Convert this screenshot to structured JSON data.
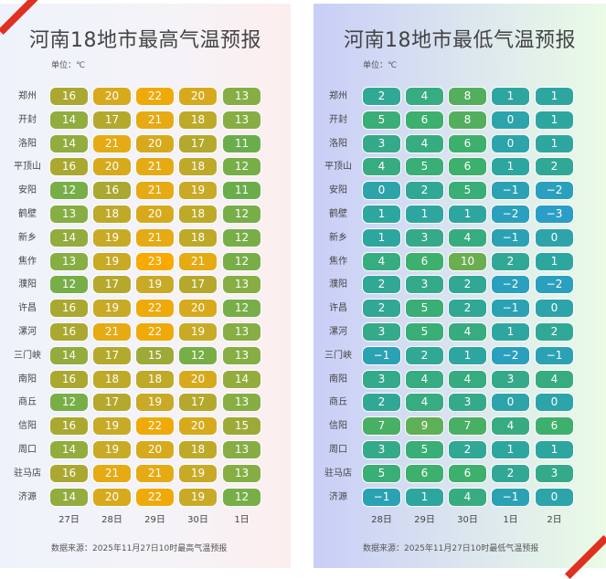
{
  "high": {
    "title": "河南18地市最高气温预报",
    "unit": "单位：℃",
    "dates": [
      "27日",
      "28日",
      "29日",
      "30日",
      "1日"
    ],
    "rows": [
      {
        "city": "郑州",
        "values": [
          16,
          20,
          22,
          20,
          13
        ]
      },
      {
        "city": "开封",
        "values": [
          14,
          17,
          21,
          18,
          13
        ]
      },
      {
        "city": "洛阳",
        "values": [
          14,
          21,
          20,
          17,
          11
        ]
      },
      {
        "city": "平顶山",
        "values": [
          16,
          20,
          21,
          18,
          12
        ]
      },
      {
        "city": "安阳",
        "values": [
          12,
          16,
          21,
          19,
          11
        ]
      },
      {
        "city": "鹤壁",
        "values": [
          13,
          18,
          20,
          18,
          12
        ]
      },
      {
        "city": "新乡",
        "values": [
          14,
          19,
          21,
          18,
          12
        ]
      },
      {
        "city": "焦作",
        "values": [
          13,
          19,
          23,
          21,
          12
        ]
      },
      {
        "city": "濮阳",
        "values": [
          12,
          17,
          19,
          17,
          13
        ]
      },
      {
        "city": "许昌",
        "values": [
          16,
          19,
          22,
          20,
          12
        ]
      },
      {
        "city": "漯河",
        "values": [
          16,
          21,
          22,
          19,
          13
        ]
      },
      {
        "city": "三门峡",
        "values": [
          14,
          17,
          15,
          12,
          13
        ]
      },
      {
        "city": "南阳",
        "values": [
          16,
          18,
          18,
          20,
          14
        ]
      },
      {
        "city": "商丘",
        "values": [
          12,
          17,
          19,
          17,
          13
        ]
      },
      {
        "city": "信阳",
        "values": [
          16,
          19,
          22,
          20,
          15
        ]
      },
      {
        "city": "周口",
        "values": [
          14,
          19,
          20,
          18,
          13
        ]
      },
      {
        "city": "驻马店",
        "values": [
          16,
          21,
          21,
          19,
          13
        ]
      },
      {
        "city": "济源",
        "values": [
          14,
          20,
          22,
          19,
          12
        ]
      }
    ],
    "source": "数据来源：2025年11月27日10时最高气温预报"
  },
  "low": {
    "title": "河南18地市最低气温预报",
    "unit": "单位：℃",
    "dates": [
      "28日",
      "29日",
      "30日",
      "1日",
      "2日"
    ],
    "rows": [
      {
        "city": "郑州",
        "values": [
          2,
          4,
          8,
          1,
          1
        ]
      },
      {
        "city": "开封",
        "values": [
          5,
          6,
          8,
          0,
          1
        ]
      },
      {
        "city": "洛阳",
        "values": [
          3,
          4,
          6,
          0,
          1
        ]
      },
      {
        "city": "平顶山",
        "values": [
          4,
          5,
          6,
          1,
          2
        ]
      },
      {
        "city": "安阳",
        "values": [
          0,
          2,
          5,
          -1,
          -2
        ]
      },
      {
        "city": "鹤壁",
        "values": [
          1,
          1,
          1,
          -2,
          -3
        ]
      },
      {
        "city": "新乡",
        "values": [
          1,
          3,
          4,
          -1,
          0
        ]
      },
      {
        "city": "焦作",
        "values": [
          4,
          6,
          10,
          2,
          1
        ]
      },
      {
        "city": "濮阳",
        "values": [
          2,
          3,
          2,
          -2,
          -2
        ]
      },
      {
        "city": "许昌",
        "values": [
          2,
          5,
          2,
          -1,
          0
        ]
      },
      {
        "city": "漯河",
        "values": [
          3,
          5,
          4,
          1,
          2
        ]
      },
      {
        "city": "三门峡",
        "values": [
          -1,
          2,
          1,
          -2,
          -1
        ]
      },
      {
        "city": "南阳",
        "values": [
          3,
          4,
          4,
          3,
          4
        ]
      },
      {
        "city": "商丘",
        "values": [
          2,
          4,
          3,
          0,
          0
        ]
      },
      {
        "city": "信阳",
        "values": [
          7,
          9,
          7,
          4,
          6
        ]
      },
      {
        "city": "周口",
        "values": [
          3,
          5,
          2,
          1,
          1
        ]
      },
      {
        "city": "驻马店",
        "values": [
          5,
          6,
          6,
          2,
          3
        ]
      },
      {
        "city": "济源",
        "values": [
          -1,
          1,
          4,
          -1,
          0
        ]
      }
    ],
    "source": "数据来源：2025年11月27日10时最低气温预报"
  },
  "colors": {
    "accent": "#e03020"
  }
}
